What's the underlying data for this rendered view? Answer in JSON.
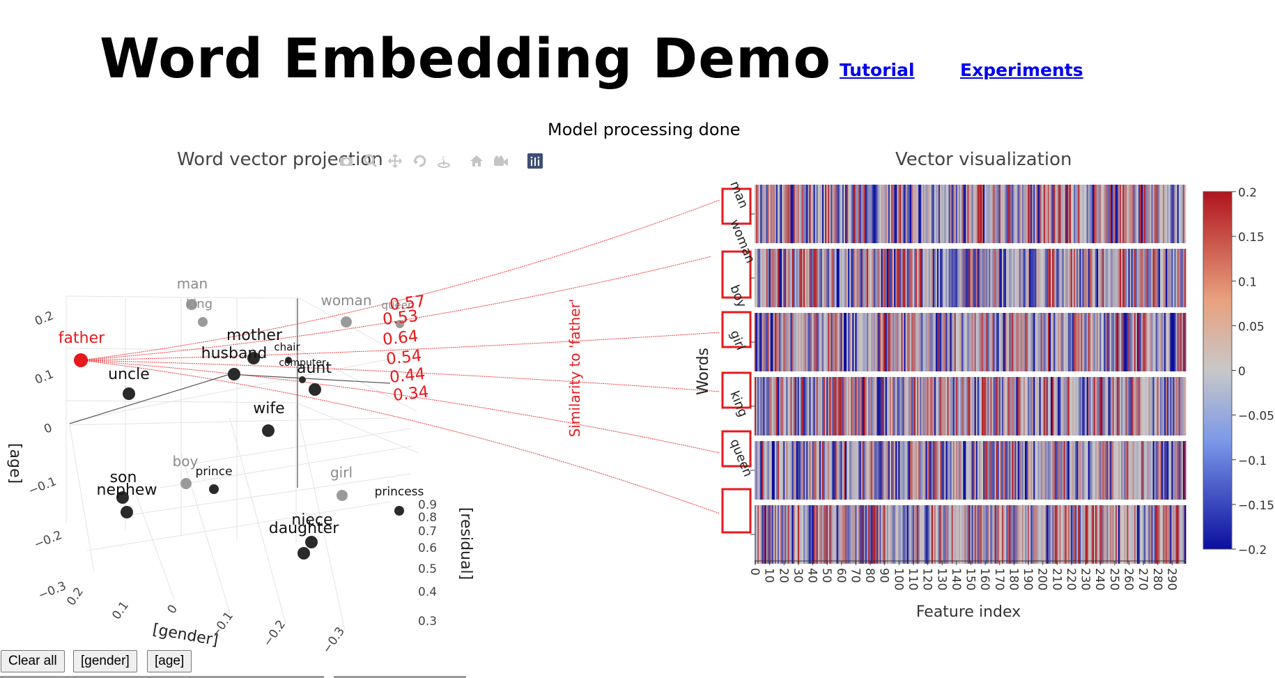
{
  "page": {
    "title": "Word Embedding Demo",
    "nav": {
      "tutorial": "Tutorial",
      "experiments": "Experiments"
    },
    "status": "Model processing done"
  },
  "projection": {
    "title": "Word vector projection",
    "axes": {
      "age": "[age]",
      "gender": "[gender]",
      "residual": "[residual]"
    },
    "age_ticks": [
      "0.2",
      "0.1",
      "0",
      "−0.1",
      "−0.2",
      "−0.3"
    ],
    "gender_ticks": [
      "0.2",
      "0.1",
      "0",
      "−0.1",
      "−0.2",
      "−0.3"
    ],
    "residual_ticks": [
      "0.9",
      "0.8",
      "0.7",
      "0.6",
      "0.5",
      "0.4",
      "0.3"
    ],
    "selected_word": "father",
    "similarities": [
      "0.57",
      "0.53",
      "0.64",
      "0.54",
      "0.44",
      "0.34"
    ],
    "similarity_label": "Similarity to 'father'",
    "points": [
      {
        "word": "man",
        "tone": "gray"
      },
      {
        "word": "king",
        "tone": "gray"
      },
      {
        "word": "woman",
        "tone": "gray"
      },
      {
        "word": "queen",
        "tone": "gray"
      },
      {
        "word": "father",
        "tone": "red"
      },
      {
        "word": "mother",
        "tone": "dark"
      },
      {
        "word": "husband",
        "tone": "dark"
      },
      {
        "word": "chair",
        "tone": "dark"
      },
      {
        "word": "computer",
        "tone": "dark"
      },
      {
        "word": "aunt",
        "tone": "dark"
      },
      {
        "word": "uncle",
        "tone": "dark"
      },
      {
        "word": "wife",
        "tone": "dark"
      },
      {
        "word": "boy",
        "tone": "gray"
      },
      {
        "word": "prince",
        "tone": "dark"
      },
      {
        "word": "girl",
        "tone": "gray"
      },
      {
        "word": "princess",
        "tone": "dark"
      },
      {
        "word": "son",
        "tone": "dark"
      },
      {
        "word": "nephew",
        "tone": "dark"
      },
      {
        "word": "niece",
        "tone": "dark"
      },
      {
        "word": "daughter",
        "tone": "dark"
      }
    ]
  },
  "vectors": {
    "title": "Vector visualization",
    "ylabel": "Words",
    "xlabel": "Feature index",
    "words": [
      "man",
      "woman",
      "boy",
      "girl",
      "king",
      "queen"
    ],
    "x_ticks": [
      "0",
      "10",
      "20",
      "30",
      "40",
      "50",
      "60",
      "70",
      "80",
      "90",
      "100",
      "110",
      "120",
      "130",
      "140",
      "150",
      "160",
      "170",
      "180",
      "190",
      "200",
      "210",
      "220",
      "230",
      "240",
      "250",
      "260",
      "270",
      "280",
      "290"
    ],
    "colorbar_ticks": [
      "0.2",
      "0.15",
      "0.1",
      "0.05",
      "0",
      "−0.05",
      "−0.1",
      "−0.15",
      "−0.2"
    ],
    "colorscale": {
      "low": "#0b0e9e",
      "mid": "#c8c8c8",
      "high": "#b0141e"
    }
  },
  "buttons": [
    "Clear all",
    "[gender]",
    "[age]"
  ],
  "colors": {
    "highlight": "#e8191c",
    "link": "#0000ee"
  }
}
